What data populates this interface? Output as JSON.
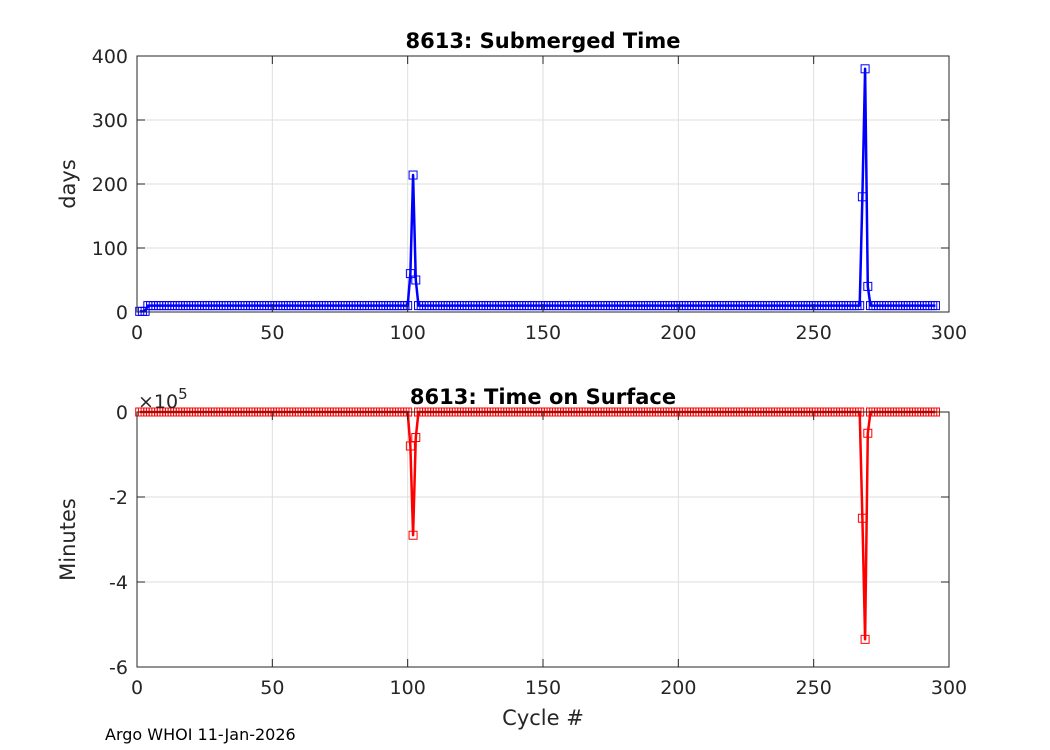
{
  "chart_data": [
    {
      "type": "line",
      "title": "8613: Submerged Time",
      "xlabel": "",
      "ylabel": "days",
      "xlim": [
        0,
        300
      ],
      "ylim": [
        0,
        400
      ],
      "xticks": [
        0,
        50,
        100,
        150,
        200,
        250,
        300
      ],
      "yticks": [
        0,
        100,
        200,
        300,
        400
      ],
      "xtick_labels": [
        "0",
        "50",
        "100",
        "150",
        "200",
        "250",
        "300"
      ],
      "ytick_labels": [
        "0",
        "100",
        "200",
        "300",
        "400"
      ],
      "grid": true,
      "color": "#0000ff",
      "marker": "square",
      "first_cycle": 1,
      "last_cycle": 295,
      "baseline": 10,
      "initial_values": [
        {
          "x": 1,
          "y": 1
        },
        {
          "x": 2,
          "y": 1
        },
        {
          "x": 3,
          "y": 1
        }
      ],
      "spikes": [
        {
          "x": 101,
          "y": 60
        },
        {
          "x": 102,
          "y": 214
        },
        {
          "x": 103,
          "y": 50
        },
        {
          "x": 268,
          "y": 180
        },
        {
          "x": 269,
          "y": 380
        },
        {
          "x": 270,
          "y": 40
        }
      ]
    },
    {
      "type": "line",
      "title": "8613: Time on Surface",
      "xlabel": "Cycle #",
      "ylabel": "Minutes",
      "xlim": [
        0,
        300
      ],
      "ylim": [
        -6,
        0
      ],
      "y_multiplier": "×10",
      "y_multiplier_exp": "5",
      "xticks": [
        0,
        50,
        100,
        150,
        200,
        250,
        300
      ],
      "yticks": [
        -6,
        -4,
        -2,
        0
      ],
      "xtick_labels": [
        "0",
        "50",
        "100",
        "150",
        "200",
        "250",
        "300"
      ],
      "ytick_labels": [
        "-6",
        "-4",
        "-2",
        "0"
      ],
      "grid": true,
      "color": "#ff0000",
      "marker": "square",
      "first_cycle": 1,
      "last_cycle": 295,
      "baseline": 0,
      "spikes": [
        {
          "x": 101,
          "y": -0.8
        },
        {
          "x": 102,
          "y": -2.9
        },
        {
          "x": 103,
          "y": -0.6
        },
        {
          "x": 268,
          "y": -2.5
        },
        {
          "x": 269,
          "y": -5.35
        },
        {
          "x": 270,
          "y": -0.5
        }
      ]
    }
  ],
  "footer": "Argo WHOI 11-Jan-2026"
}
